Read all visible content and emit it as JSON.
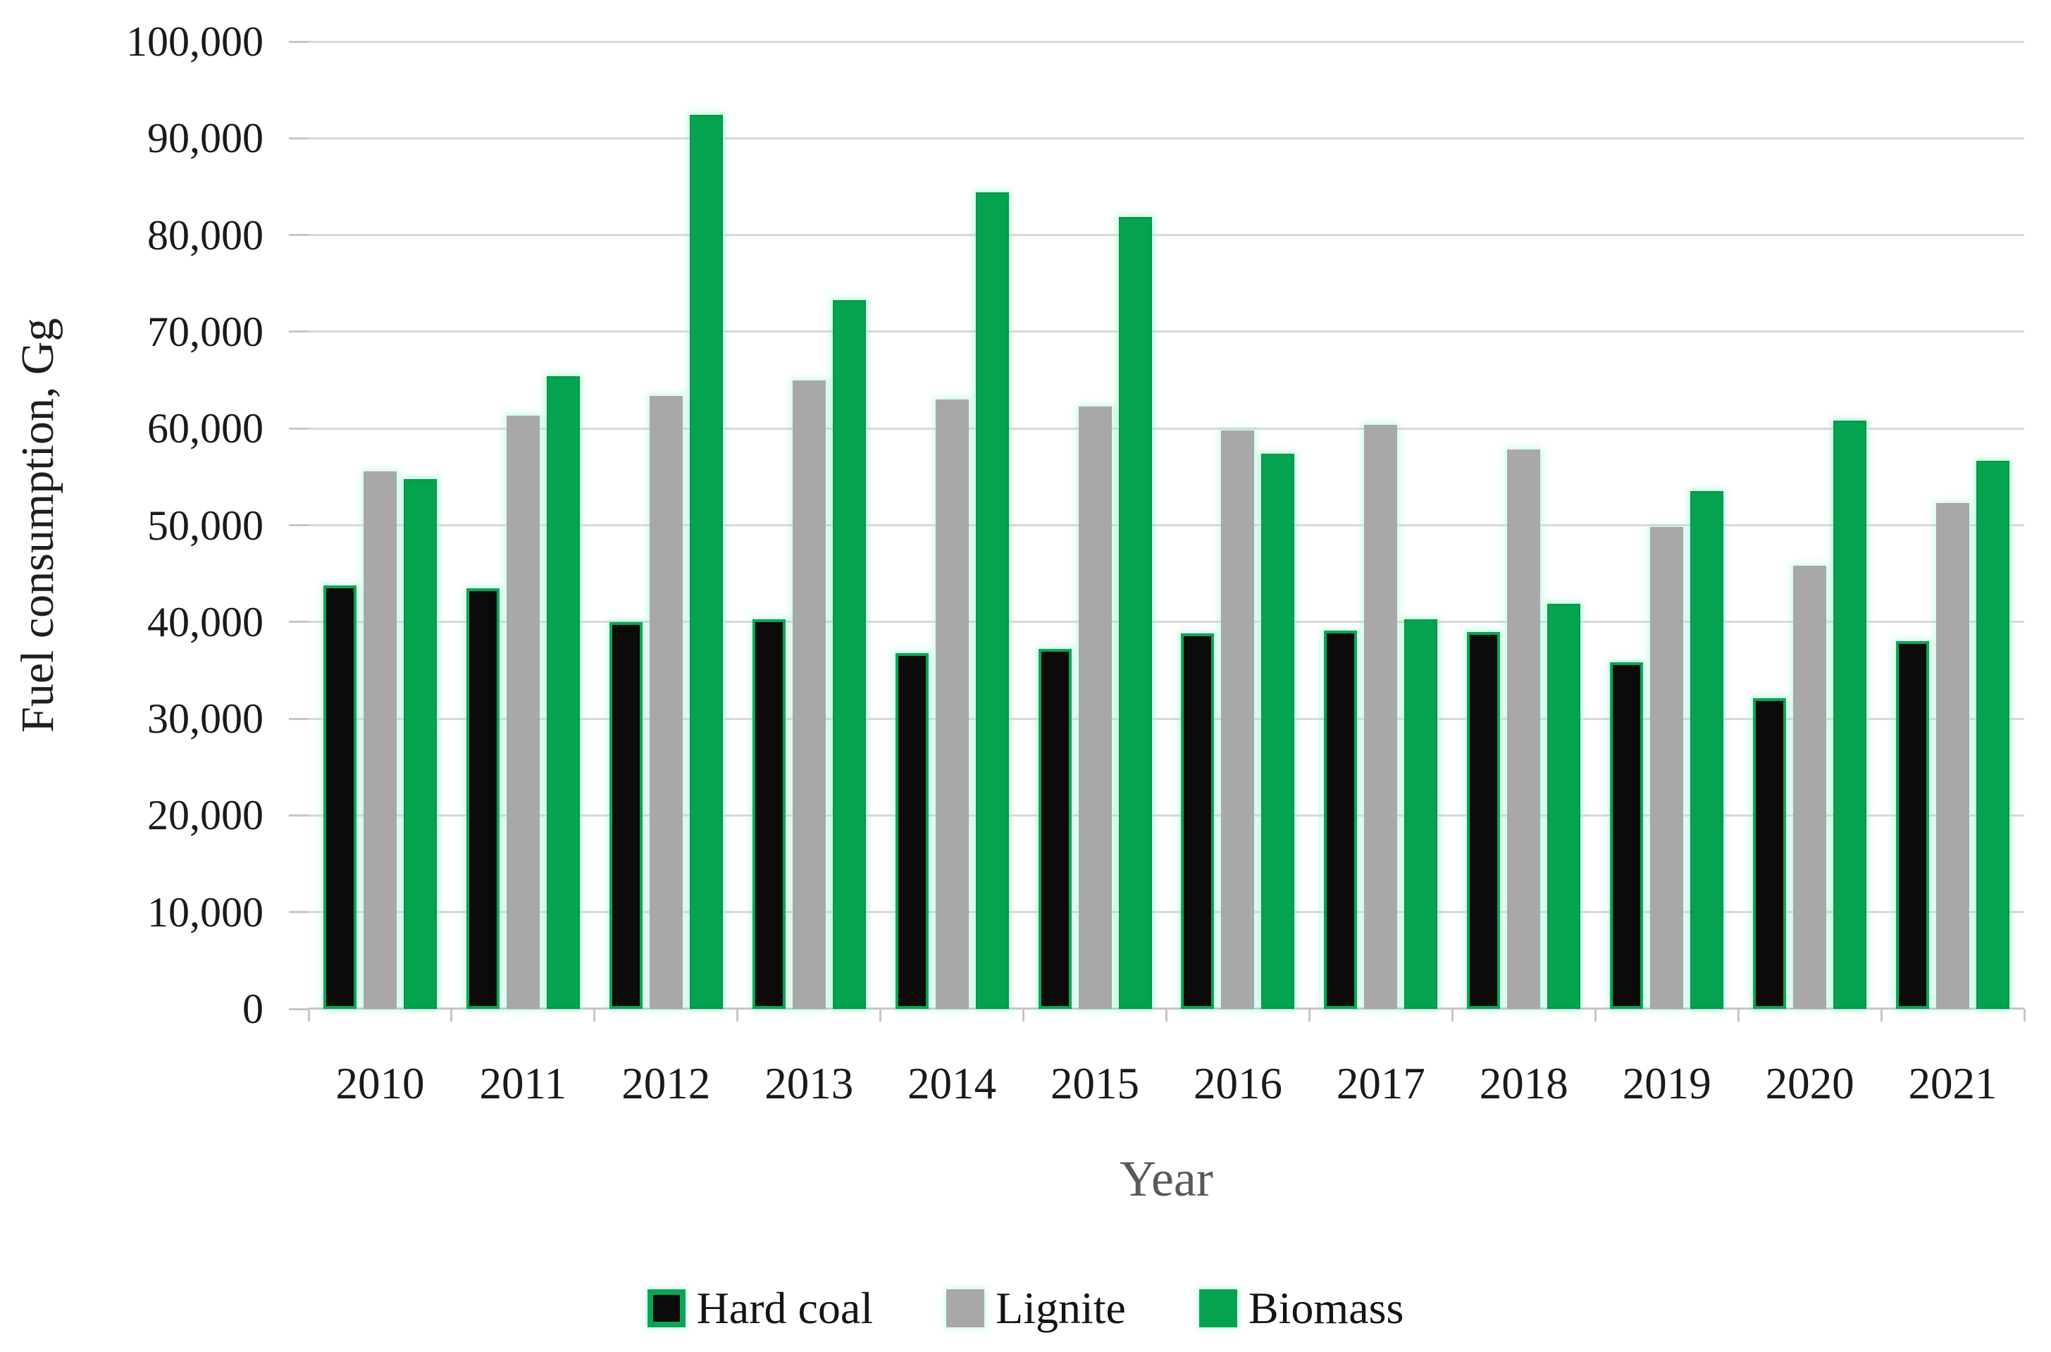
{
  "chart_data": {
    "type": "bar",
    "title": "",
    "xlabel": "Year",
    "ylabel": "Fuel consumption, Gg",
    "categories": [
      "2010",
      "2011",
      "2012",
      "2013",
      "2014",
      "2015",
      "2016",
      "2017",
      "2018",
      "2019",
      "2020",
      "2021"
    ],
    "series": [
      {
        "name": "Hard coal",
        "fill": "#0b0b09",
        "border": "#0aa655",
        "values": [
          43800,
          43500,
          40000,
          40300,
          36800,
          37200,
          38800,
          39100,
          39000,
          35800,
          32100,
          38000
        ]
      },
      {
        "name": "Lignite",
        "fill": "#a8a8a8",
        "border": "",
        "values": [
          55600,
          61300,
          63400,
          65000,
          63000,
          62300,
          59800,
          60400,
          57800,
          49800,
          45800,
          52300
        ]
      },
      {
        "name": "Biomass",
        "fill": "#04a350",
        "border": "",
        "values": [
          54800,
          65400,
          92400,
          73300,
          84400,
          81900,
          57400,
          40300,
          41900,
          53500,
          60800,
          56700
        ]
      }
    ],
    "ylim": [
      0,
      100000
    ],
    "ytick_interval": 10000,
    "ytick_labels": [
      "0",
      "10,000",
      "20,000",
      "30,000",
      "40,000",
      "50,000",
      "60,000",
      "70,000",
      "80,000",
      "90,000",
      "100,000"
    ],
    "grid": true,
    "legend_position": "bottom"
  },
  "colors": {
    "background": "#ffffff",
    "gridline": "#d9d9d9",
    "axis_line": "#c6c6c6",
    "tick_mark": "#c6c6c6",
    "tick_label_text": "#1a1a1a",
    "y_axis_title_text": "#1f1f1f",
    "x_axis_title_text": "#595959",
    "hard_coal": "#0b0b09",
    "hard_coal_outline": "#0aa655",
    "lignite": "#a8a8a8",
    "biomass": "#04a350",
    "bar_glow": "rgba(140,245,200,0.45)"
  }
}
